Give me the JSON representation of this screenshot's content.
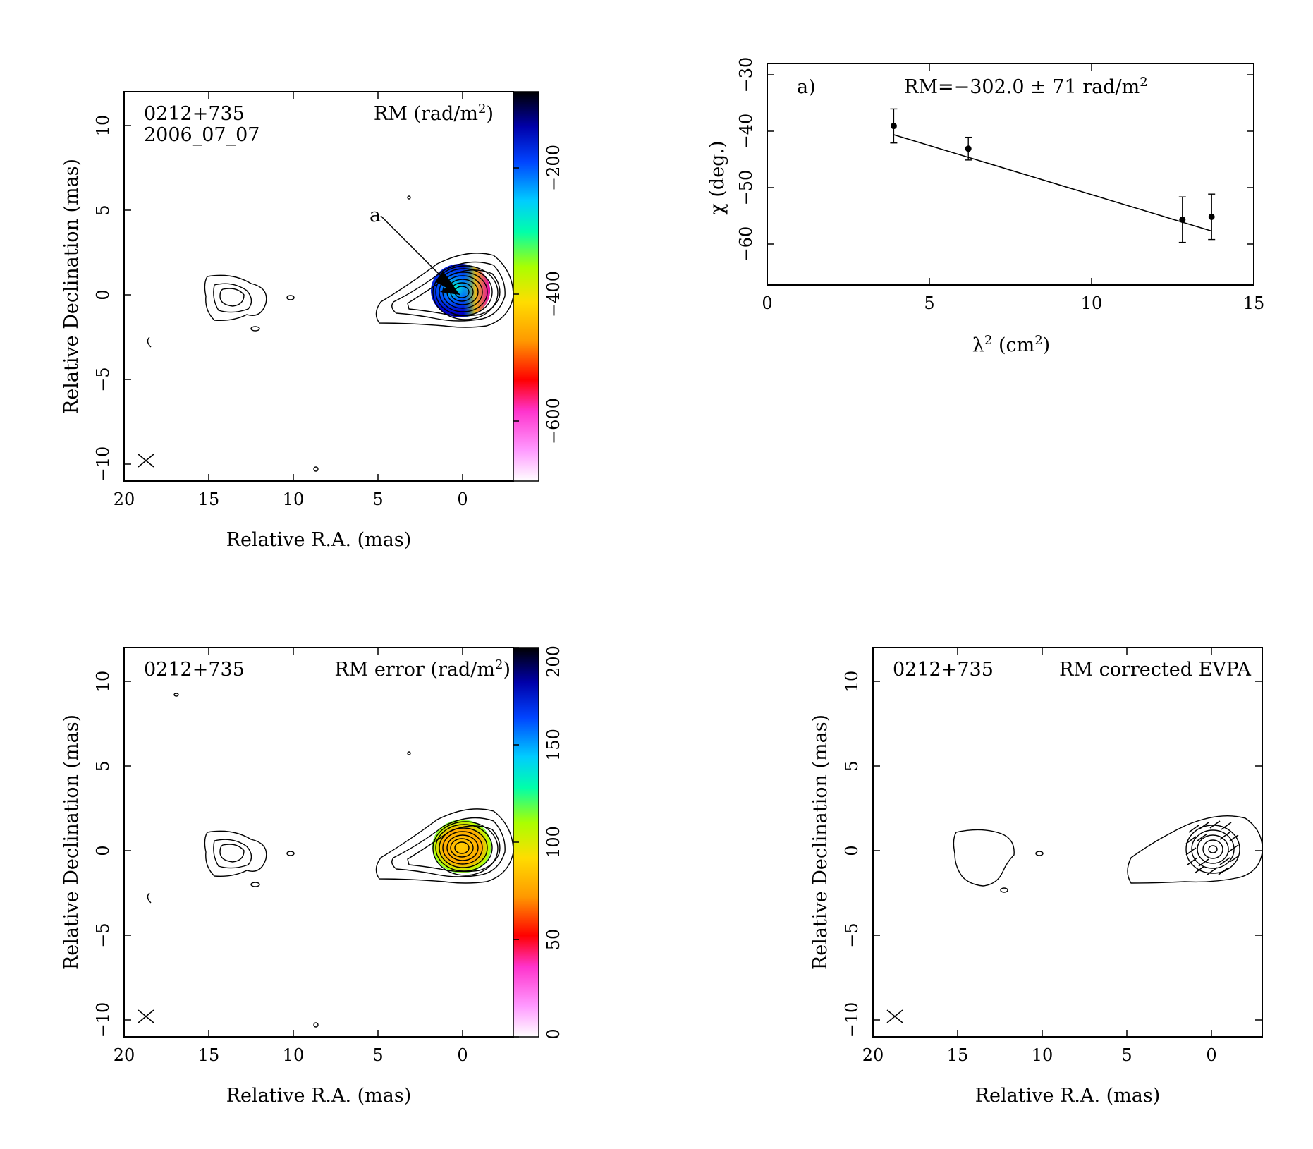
{
  "panels": {
    "rm_map": {
      "source": "0212+735",
      "date": "2006_07_07",
      "title_main": "RM (rad/m",
      "title_sup": "2",
      "title_end": ")",
      "xlabel": "Relative R.A. (mas)",
      "ylabel": "Relative Declination (mas)",
      "xticks": [
        "20",
        "15",
        "10",
        "5",
        "0"
      ],
      "yticks": [
        "10",
        "5",
        "0",
        "−5",
        "−10"
      ],
      "colorbar_ticks": [
        "−200",
        "−400",
        "−600"
      ],
      "annotation": "a"
    },
    "rm_fit": {
      "label": "a)",
      "rm_text": "RM=−302.0 ± 71 rad/m",
      "rm_sup": "2",
      "xlabel_main": "λ",
      "xlabel_sup": "2",
      "xlabel_end": " (cm",
      "xlabel_sup2": "2",
      "xlabel_close": ")",
      "ylabel": "χ (deg.)",
      "xticks": [
        "0",
        "5",
        "10",
        "15"
      ],
      "yticks": [
        "−30",
        "−40",
        "−50",
        "−60"
      ]
    },
    "rm_error": {
      "source": "0212+735",
      "title_main": "RM error (rad/m",
      "title_sup": "2",
      "title_end": ")",
      "xlabel": "Relative R.A. (mas)",
      "ylabel": "Relative Declination (mas)",
      "xticks": [
        "20",
        "15",
        "10",
        "5",
        "0"
      ],
      "yticks": [
        "10",
        "5",
        "0",
        "−5",
        "−10"
      ],
      "colorbar_ticks": [
        "0",
        "50",
        "100",
        "150",
        "200"
      ]
    },
    "evpa": {
      "source": "0212+735",
      "title": "RM corrected EVPA",
      "xlabel": "Relative R.A. (mas)",
      "ylabel": "Relative Declination (mas)",
      "xticks": [
        "20",
        "15",
        "10",
        "5",
        "0"
      ],
      "yticks": [
        "10",
        "5",
        "0",
        "−5",
        "−10"
      ]
    }
  },
  "chart_data": [
    {
      "type": "scatter",
      "panel": "RM fit",
      "x": [
        3.9,
        6.2,
        12.8,
        13.7
      ],
      "y": [
        -39,
        -43,
        -55.5,
        -55
      ],
      "yerr": [
        3,
        2,
        4,
        4
      ],
      "fit": {
        "rm": -302.0,
        "rm_err": 71,
        "y_at_x0": -33.8,
        "slope_deg_per_cm2": -1.73
      },
      "xlim": [
        0,
        15
      ],
      "ylim": [
        -67,
        -28
      ],
      "xlabel": "λ² (cm²)",
      "ylabel": "χ (deg.)"
    },
    {
      "type": "heatmap",
      "panel": "RM map",
      "xlim": [
        20,
        -3
      ],
      "ylim": [
        -11,
        12
      ],
      "colorbar_range": [
        -750,
        -130
      ],
      "colorscale": [
        "#ffffff",
        "#ff66ff",
        "#ff0000",
        "#ffcc00",
        "#ccff00",
        "#00ff66",
        "#00ffff",
        "#0066ff",
        "#0000cc",
        "#000000"
      ]
    },
    {
      "type": "heatmap",
      "panel": "RM error map",
      "xlim": [
        20,
        -3
      ],
      "ylim": [
        -11,
        12
      ],
      "colorbar_range": [
        0,
        200
      ],
      "colorscale": [
        "#ffffff",
        "#ff66ff",
        "#ff0000",
        "#ffcc00",
        "#ccff00",
        "#00ff66",
        "#00ffff",
        "#0066ff",
        "#0000cc",
        "#000000"
      ]
    },
    {
      "type": "heatmap",
      "panel": "RM corrected EVPA",
      "xlim": [
        20,
        -3
      ],
      "ylim": [
        -11,
        12
      ]
    }
  ]
}
